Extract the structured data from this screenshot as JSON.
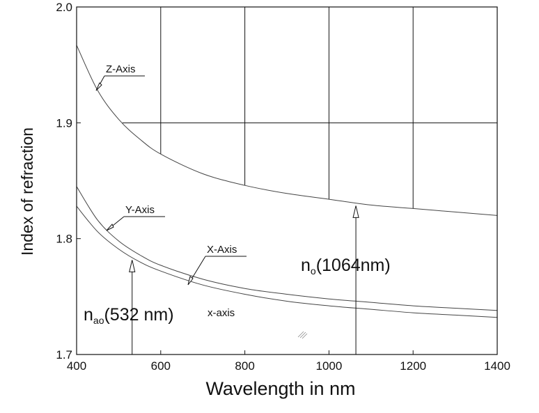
{
  "chart_data": {
    "type": "line",
    "xlabel": "Wavelength in nm",
    "ylabel": "Index of refraction",
    "xlim": [
      400,
      1400
    ],
    "ylim": [
      1.7,
      2.0
    ],
    "x_ticks": [
      400,
      600,
      800,
      1000,
      1200,
      1400
    ],
    "y_ticks": [
      1.7,
      1.8,
      1.9,
      2.0
    ],
    "y_tick_labels": [
      "1.7",
      "1.8",
      "1.9",
      "2.0"
    ],
    "series": [
      {
        "name": "Z-Axis",
        "x": [
          400,
          450,
          500,
          550,
          600,
          700,
          800,
          900,
          1000,
          1100,
          1200,
          1300,
          1400
        ],
        "y": [
          1.967,
          1.928,
          1.903,
          1.886,
          1.873,
          1.856,
          1.846,
          1.839,
          1.834,
          1.829,
          1.826,
          1.823,
          1.82
        ]
      },
      {
        "name": "Y-Axis",
        "x": [
          400,
          450,
          500,
          550,
          600,
          700,
          800,
          900,
          1000,
          1100,
          1200,
          1300,
          1400
        ],
        "y": [
          1.845,
          1.816,
          1.798,
          1.786,
          1.777,
          1.765,
          1.757,
          1.752,
          1.748,
          1.745,
          1.742,
          1.74,
          1.738
        ]
      },
      {
        "name": "X-Axis",
        "x": [
          400,
          450,
          500,
          550,
          600,
          700,
          800,
          900,
          1000,
          1100,
          1200,
          1300,
          1400
        ],
        "y": [
          1.828,
          1.806,
          1.791,
          1.78,
          1.772,
          1.76,
          1.752,
          1.746,
          1.742,
          1.739,
          1.736,
          1.734,
          1.732
        ]
      }
    ],
    "grid_region": {
      "vlines_x": [
        600,
        800,
        1000,
        1200
      ],
      "hlines_y": [
        1.9
      ],
      "y_top": 2.0
    },
    "annotations": {
      "z_axis": "Z-Axis",
      "y_axis": "Y-Axis",
      "x_axis_upper": "X-Axis",
      "x_axis_lower": "x-axis",
      "nao_main": "n",
      "nao_sub": "ao",
      "nao_rest": "(532 nm)",
      "no_main": "n",
      "no_sub": "o",
      "no_rest": "(1064nm)"
    },
    "arrows_x": [
      532,
      1064
    ],
    "grid": "partial"
  }
}
